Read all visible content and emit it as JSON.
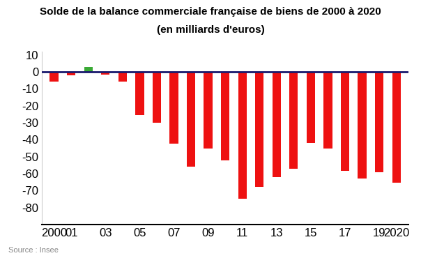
{
  "chart_data": {
    "type": "bar",
    "title": "Solde de la balance commerciale française de biens de 2000 à 2020",
    "subtitle": "(en milliards d'euros)",
    "annotations": [
      "Source : Insee"
    ],
    "categories": [
      "2000",
      "01",
      null,
      "03",
      null,
      "05",
      null,
      "07",
      null,
      "09",
      null,
      "11",
      null,
      "13",
      null,
      "15",
      null,
      "17",
      null,
      "19",
      "2020"
    ],
    "values": [
      -5.5,
      -2,
      3,
      -1.5,
      -5.5,
      -25.5,
      -30,
      -42.5,
      -56,
      -45,
      -52,
      -75,
      -68,
      -62,
      -57,
      -42,
      -45,
      -58.5,
      -63,
      -59,
      -65.5
    ],
    "colors": [
      "#ee1111",
      "#ee1111",
      "#3aaa35",
      "#ee1111",
      "#ee1111",
      "#ee1111",
      "#ee1111",
      "#ee1111",
      "#ee1111",
      "#ee1111",
      "#ee1111",
      "#ee1111",
      "#ee1111",
      "#ee1111",
      "#ee1111",
      "#ee1111",
      "#ee1111",
      "#ee1111",
      "#ee1111",
      "#ee1111",
      "#ee1111"
    ],
    "ylim": [
      -90,
      12
    ],
    "yticks": [
      10,
      0,
      -10,
      -20,
      -30,
      -40,
      -50,
      -60,
      -70,
      -80
    ],
    "grid": false
  }
}
